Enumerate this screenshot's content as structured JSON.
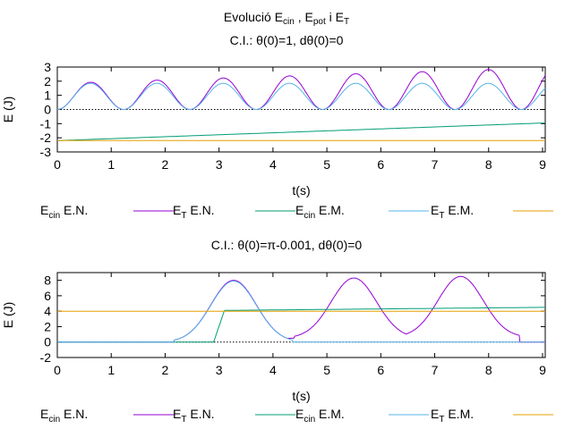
{
  "page": {
    "title": "Evolució E_cin , E_pot i E_T",
    "title_parts": {
      "pre": "Evolució E",
      "s1": "cin",
      "mid1": " , E",
      "s2": "pot",
      "mid2": " i E",
      "s3": "T"
    }
  },
  "colors": {
    "purple": "#9400d3",
    "green": "#009e73",
    "blue": "#56b4e9",
    "orange": "#e69f00",
    "ref": "#000000"
  },
  "legend": [
    {
      "key": "ecin_en",
      "main": "E",
      "sub": "cin",
      "rest": " E.N.",
      "color": "purple"
    },
    {
      "key": "et_en",
      "main": "E",
      "sub": "T",
      "rest": " E.N.",
      "color": "green"
    },
    {
      "key": "ecin_em",
      "main": "E",
      "sub": "cin",
      "rest": " E.M.",
      "color": "blue"
    },
    {
      "key": "et_em",
      "main": "E",
      "sub": "T",
      "rest": " E.M.",
      "color": "orange"
    }
  ],
  "chart_data": [
    {
      "type": "line",
      "title": "C.I.: θ(0)=1, dθ(0)=0",
      "xlabel": "t(s)",
      "ylabel": "E    (J)",
      "xlim": [
        0,
        9.05
      ],
      "ylim": [
        -3,
        3
      ],
      "xticks": [
        0,
        1,
        2,
        3,
        4,
        5,
        6,
        7,
        8,
        9
      ],
      "yticks": [
        -3,
        -2,
        -1,
        0,
        1,
        2,
        3
      ],
      "zero_line": true,
      "grid": false,
      "legend_position": "bottom",
      "series": [
        {
          "key": "ecin_en",
          "color": "purple",
          "kind": "osc",
          "period": 1.23,
          "amp_start": 1.85,
          "amp_end": 2.95,
          "base": 0
        },
        {
          "key": "et_en",
          "color": "green",
          "kind": "linear",
          "y_start": -2.2,
          "y_end": -0.95
        },
        {
          "key": "ecin_em",
          "color": "blue",
          "kind": "osc",
          "period": 1.23,
          "amp_start": 1.85,
          "amp_end": 1.85,
          "base": 0
        },
        {
          "key": "et_em",
          "color": "orange",
          "kind": "linear",
          "y_start": -2.2,
          "y_end": -2.2
        }
      ]
    },
    {
      "type": "line",
      "title": "C.I.: θ(0)=π-0.001, dθ(0)=0",
      "xlabel": "t(s)",
      "ylabel": "E    (J)",
      "xlim": [
        0,
        9.05
      ],
      "ylim": [
        -2,
        9
      ],
      "xticks": [
        0,
        1,
        2,
        3,
        4,
        5,
        6,
        7,
        8,
        9
      ],
      "yticks": [
        -2,
        0,
        2,
        4,
        6,
        8
      ],
      "zero_line": true,
      "grid": false,
      "legend_position": "bottom",
      "series": [
        {
          "key": "ecin_en",
          "color": "purple",
          "kind": "peaks",
          "peaks": [
            3.27,
            5.5,
            7.48
          ],
          "peak_heights": [
            8.0,
            8.3,
            8.5
          ],
          "widths": [
            0.42,
            0.42,
            0.42
          ],
          "troughs": [
            0.0,
            0.5,
            0.6
          ]
        },
        {
          "key": "et_en",
          "color": "green",
          "kind": "step",
          "points": [
            [
              0,
              0
            ],
            [
              2.9,
              0
            ],
            [
              3.1,
              4.1
            ],
            [
              9.05,
              4.5
            ]
          ]
        },
        {
          "key": "ecin_em",
          "color": "blue",
          "kind": "peaks",
          "peaks": [
            3.27
          ],
          "peak_heights": [
            7.9
          ],
          "widths": [
            0.42
          ],
          "troughs": [
            0.0
          ]
        },
        {
          "key": "et_em",
          "color": "orange",
          "kind": "linear",
          "y_start": 4.0,
          "y_end": 4.0
        }
      ]
    }
  ]
}
